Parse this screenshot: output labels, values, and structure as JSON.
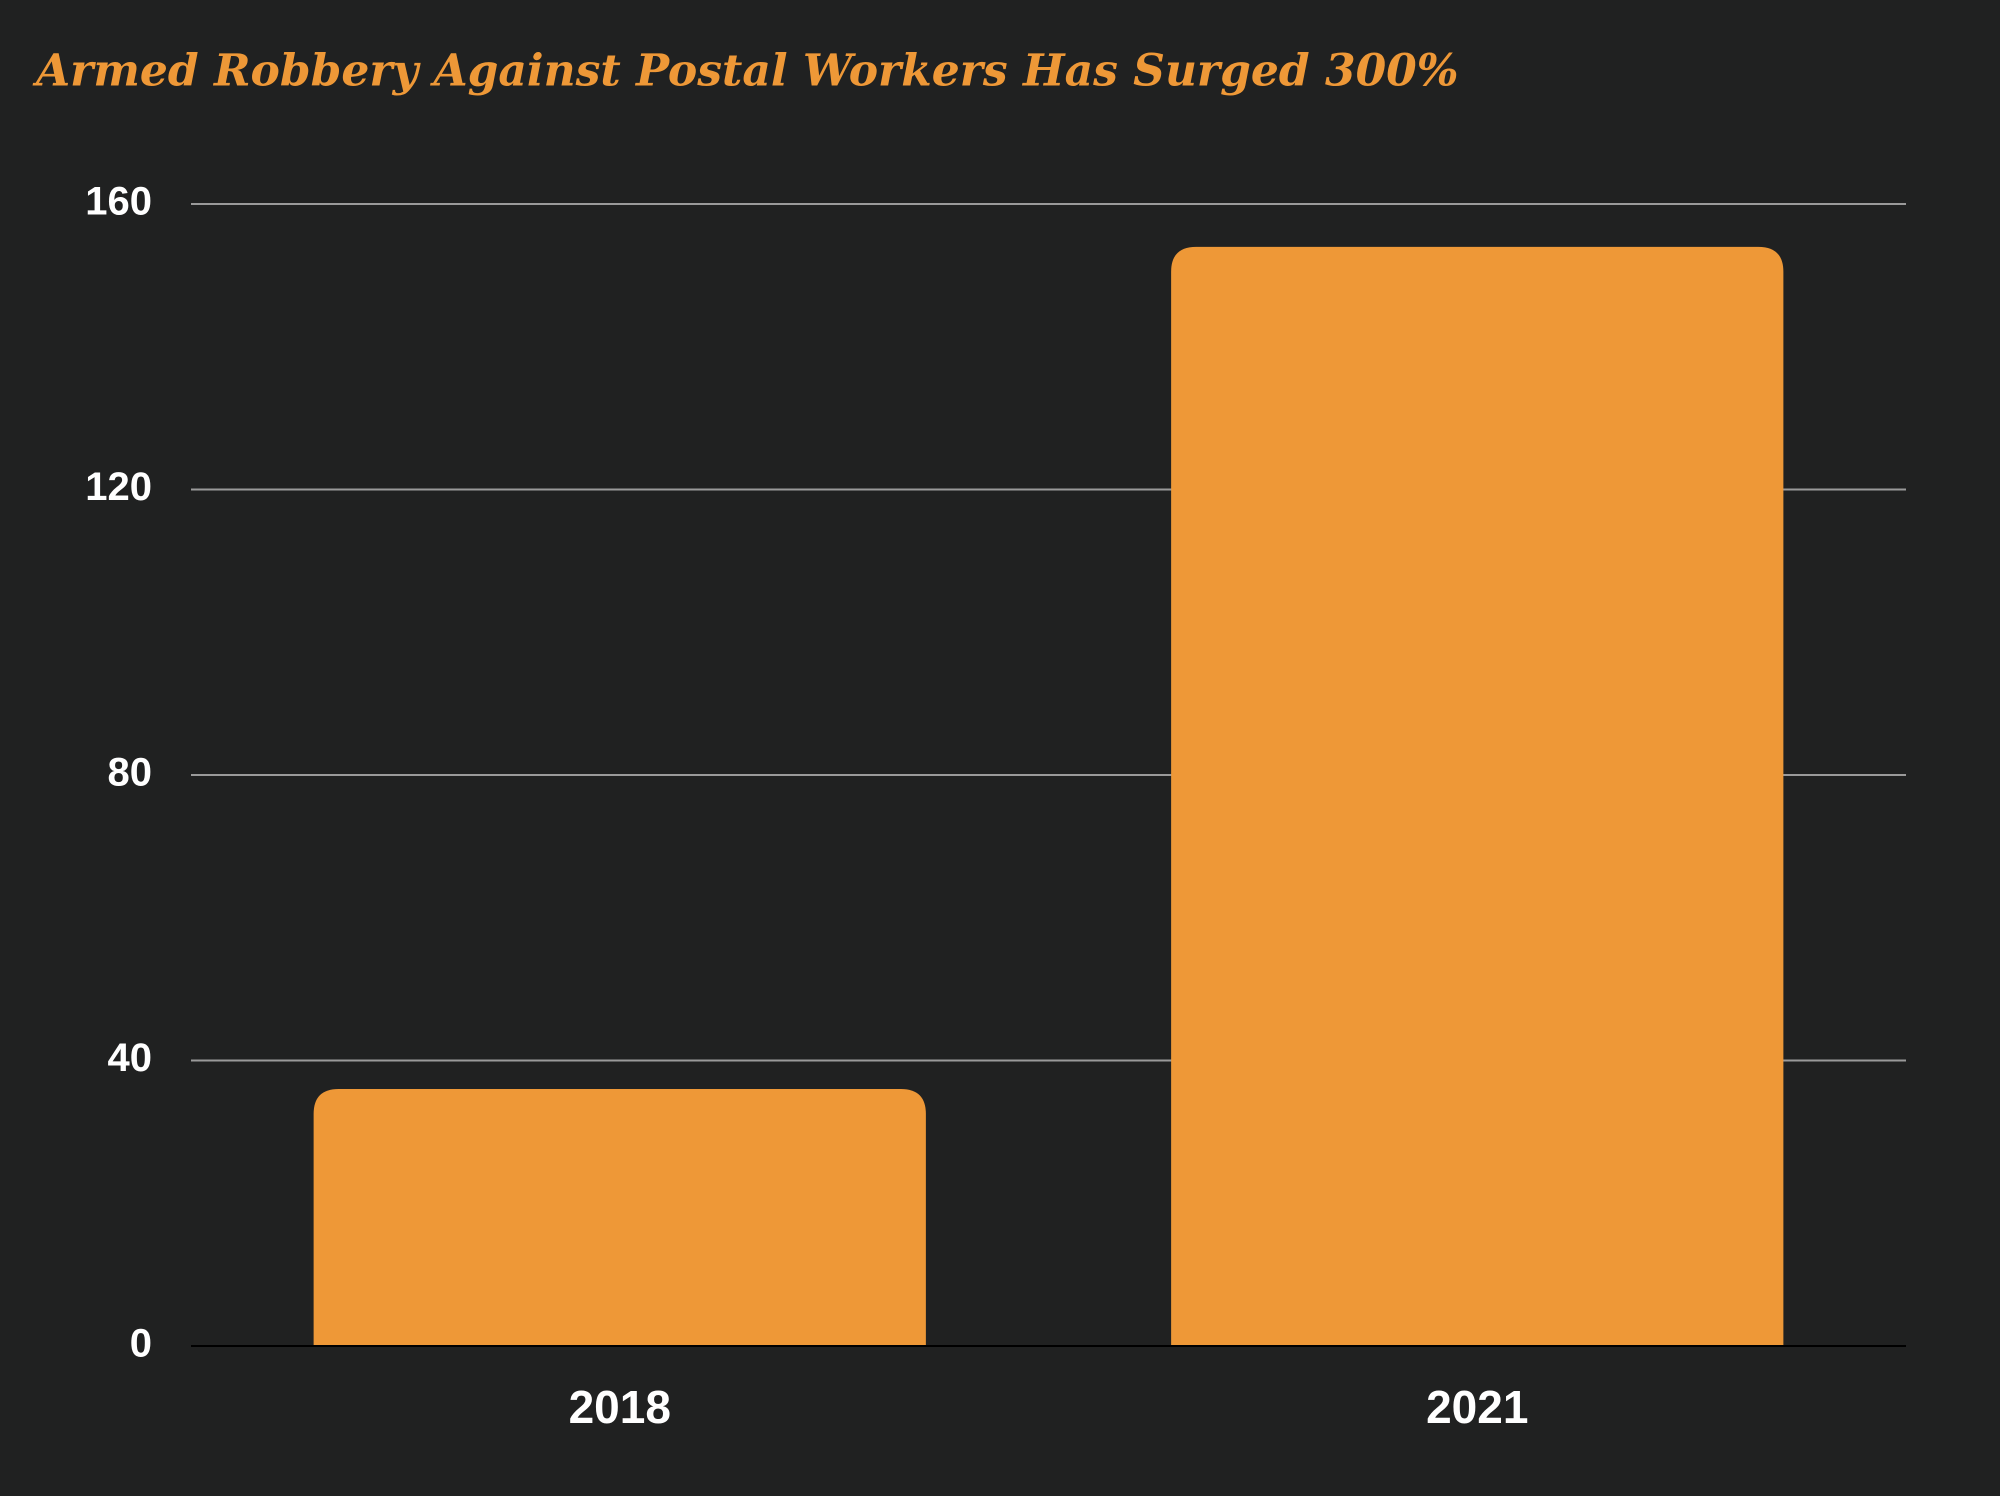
{
  "chart_data": {
    "type": "bar",
    "title": "Armed Robbery Against Postal Workers Has Surged 300%",
    "categories": [
      "2018",
      "2021"
    ],
    "values": [
      36,
      154
    ],
    "color": "#ee9837",
    "ylim": [
      0,
      160
    ],
    "yticks": [
      0,
      40,
      80,
      120,
      160
    ],
    "grid": true
  }
}
